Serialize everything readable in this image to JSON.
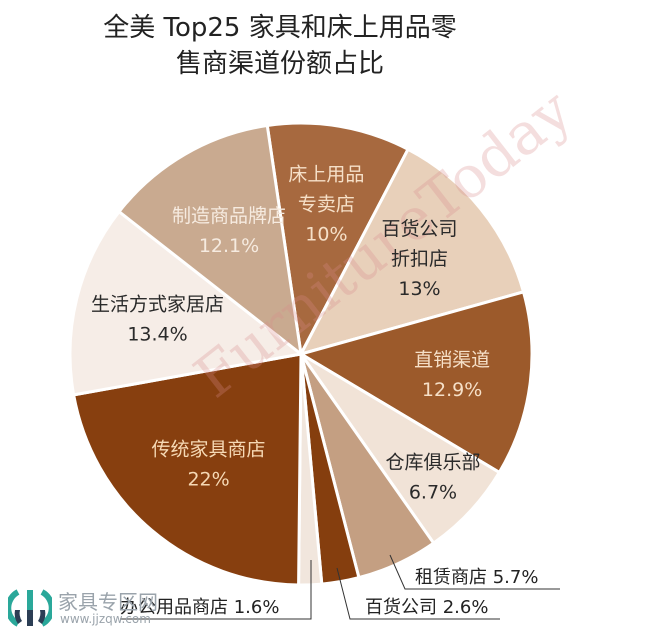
{
  "title_line1": "全美 Top25 家具和床上用品零",
  "title_line2": "售商渠道份额占比",
  "watermark": "FurnitureToday",
  "logo": {
    "name": "家具专区网",
    "url": "www.jjzqw.com"
  },
  "chart_data": {
    "type": "pie",
    "title": "全美 Top25 家具和床上用品零售商渠道份额占比",
    "start_angle_deg": -8.4,
    "slices": [
      {
        "label": "床上用品专卖店",
        "lines": [
          "床上用品",
          "专卖店"
        ],
        "pct_label": "10%",
        "value": 10,
        "color": "#a7693f",
        "text": "#f6e0c8"
      },
      {
        "label": "百货公司折扣店",
        "lines": [
          "百货公司",
          "折扣店"
        ],
        "pct_label": "13%",
        "value": 13,
        "color": "#e8d0ba",
        "text": "#2a2a2a"
      },
      {
        "label": "直销渠道",
        "lines": [
          "直销渠道"
        ],
        "pct_label": "12.9%",
        "value": 12.9,
        "color": "#9c5a2b",
        "text": "#f6e0c8"
      },
      {
        "label": "仓库俱乐部",
        "lines": [
          "仓库俱乐部"
        ],
        "pct_label": "6.7%",
        "value": 6.7,
        "color": "#f1e3d7",
        "text": "#2a2a2a"
      },
      {
        "label": "租赁商店",
        "lines": [],
        "pct_label": "5.7%",
        "value": 5.7,
        "color": "#c49f82",
        "text": "#2a2a2a",
        "callout": "租赁商店 5.7%"
      },
      {
        "label": "百货公司",
        "lines": [],
        "pct_label": "2.6%",
        "value": 2.6,
        "color": "#853e0e",
        "text": "#2a2a2a",
        "callout": "百货公司 2.6%"
      },
      {
        "label": "办公用品商店",
        "lines": [],
        "pct_label": "1.6%",
        "value": 1.6,
        "color": "#f1e6dd",
        "text": "#2a2a2a",
        "callout": "办公用品商店 1.6%"
      },
      {
        "label": "传统家具商店",
        "lines": [
          "传统家具商店"
        ],
        "pct_label": "22%",
        "value": 22,
        "color": "#873f0f",
        "text": "#f6d9b5"
      },
      {
        "label": "生活方式家居店",
        "lines": [
          "生活方式家居店"
        ],
        "pct_label": "13.4%",
        "value": 13.4,
        "color": "#f6ede7",
        "text": "#2a2a2a"
      },
      {
        "label": "制造商品牌店",
        "lines": [
          "制造商品牌店"
        ],
        "pct_label": "12.1%",
        "value": 12.1,
        "color": "#c9aa90",
        "text": "#f6ebe0"
      }
    ]
  }
}
